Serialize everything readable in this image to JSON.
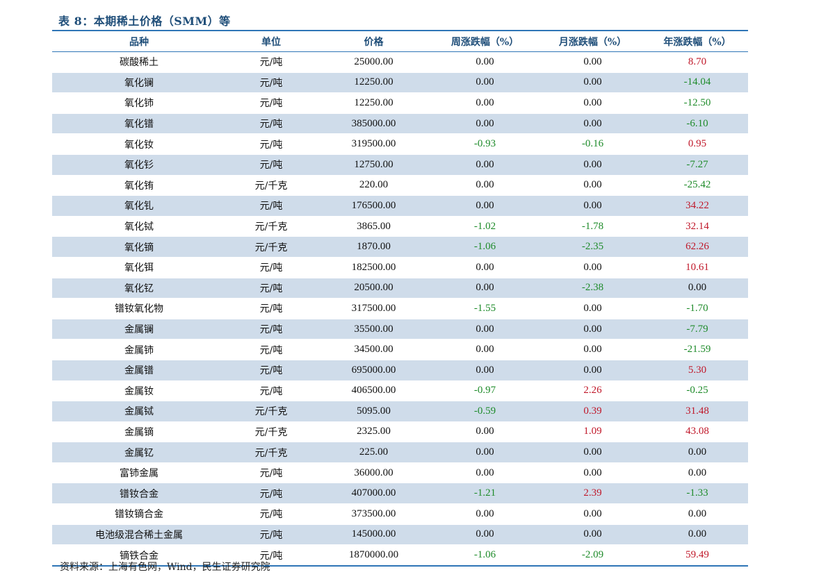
{
  "title": "表 8：本期稀土价格（SMM）等",
  "headers": [
    "品种",
    "单位",
    "价格",
    "周涨跌幅（%）",
    "月涨跌幅（%）",
    "年涨跌幅（%）"
  ],
  "rows": [
    [
      "碳酸稀土",
      "元/吨",
      "25000.00",
      "0.00",
      "0.00",
      "8.70"
    ],
    [
      "氧化镧",
      "元/吨",
      "12250.00",
      "0.00",
      "0.00",
      "-14.04"
    ],
    [
      "氧化铈",
      "元/吨",
      "12250.00",
      "0.00",
      "0.00",
      "-12.50"
    ],
    [
      "氧化镨",
      "元/吨",
      "385000.00",
      "0.00",
      "0.00",
      "-6.10"
    ],
    [
      "氧化钕",
      "元/吨",
      "319500.00",
      "-0.93",
      "-0.16",
      "0.95"
    ],
    [
      "氧化钐",
      "元/吨",
      "12750.00",
      "0.00",
      "0.00",
      "-7.27"
    ],
    [
      "氧化铕",
      "元/千克",
      "220.00",
      "0.00",
      "0.00",
      "-25.42"
    ],
    [
      "氧化钆",
      "元/吨",
      "176500.00",
      "0.00",
      "0.00",
      "34.22"
    ],
    [
      "氧化铽",
      "元/千克",
      "3865.00",
      "-1.02",
      "-1.78",
      "32.14"
    ],
    [
      "氧化镝",
      "元/千克",
      "1870.00",
      "-1.06",
      "-2.35",
      "62.26"
    ],
    [
      "氧化铒",
      "元/吨",
      "182500.00",
      "0.00",
      "0.00",
      "10.61"
    ],
    [
      "氧化钇",
      "元/吨",
      "20500.00",
      "0.00",
      "-2.38",
      "0.00"
    ],
    [
      "镨钕氧化物",
      "元/吨",
      "317500.00",
      "-1.55",
      "0.00",
      "-1.70"
    ],
    [
      "金属镧",
      "元/吨",
      "35500.00",
      "0.00",
      "0.00",
      "-7.79"
    ],
    [
      "金属铈",
      "元/吨",
      "34500.00",
      "0.00",
      "0.00",
      "-21.59"
    ],
    [
      "金属镨",
      "元/吨",
      "695000.00",
      "0.00",
      "0.00",
      "5.30"
    ],
    [
      "金属钕",
      "元/吨",
      "406500.00",
      "-0.97",
      "2.26",
      "-0.25"
    ],
    [
      "金属铽",
      "元/千克",
      "5095.00",
      "-0.59",
      "0.39",
      "31.48"
    ],
    [
      "金属镝",
      "元/千克",
      "2325.00",
      "0.00",
      "1.09",
      "43.08"
    ],
    [
      "金属钇",
      "元/千克",
      "225.00",
      "0.00",
      "0.00",
      "0.00"
    ],
    [
      "富铈金属",
      "元/吨",
      "36000.00",
      "0.00",
      "0.00",
      "0.00"
    ],
    [
      "镨钕合金",
      "元/吨",
      "407000.00",
      "-1.21",
      "2.39",
      "-1.33"
    ],
    [
      "镨钕镝合金",
      "元/吨",
      "373500.00",
      "0.00",
      "0.00",
      "0.00"
    ],
    [
      "电池级混合稀土金属",
      "元/吨",
      "145000.00",
      "0.00",
      "0.00",
      "0.00"
    ],
    [
      "镝铁合金",
      "元/吨",
      "1870000.00",
      "-1.06",
      "-2.09",
      "59.49"
    ]
  ],
  "source": "资料来源：上海有色网，Wind，民生证券研究院",
  "colors": {
    "accent": "#2e75b6",
    "title": "#1f4e79",
    "row_shade": "#cfdcea",
    "positive": "#c0182a",
    "negative": "#1e8b2a"
  }
}
